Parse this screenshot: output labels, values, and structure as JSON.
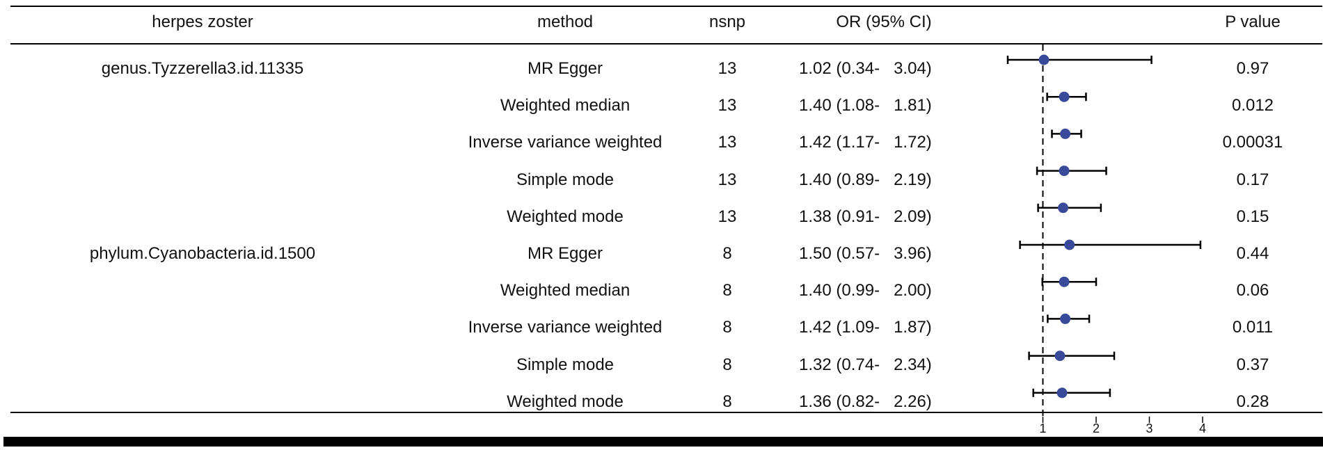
{
  "header": {
    "outcome": "herpes zoster",
    "method": "method",
    "nsnp": "nsnp",
    "or_ci": "OR (95% CI)",
    "p_value": "P value"
  },
  "groups": [
    {
      "label": "genus.Tyzzerella3.id.11335"
    },
    {
      "label": "phylum.Cyanobacteria.id.1500"
    }
  ],
  "rows": [
    {
      "method": "MR Egger",
      "nsnp": "13",
      "or_ci": "1.02 (0.34-   3.04)",
      "p": "0.97"
    },
    {
      "method": "Weighted median",
      "nsnp": "13",
      "or_ci": "1.40 (1.08-   1.81)",
      "p": "0.012"
    },
    {
      "method": "Inverse variance weighted",
      "nsnp": "13",
      "or_ci": "1.42 (1.17-   1.72)",
      "p": "0.00031"
    },
    {
      "method": "Simple mode",
      "nsnp": "13",
      "or_ci": "1.40 (0.89-   2.19)",
      "p": "0.17"
    },
    {
      "method": "Weighted mode",
      "nsnp": "13",
      "or_ci": "1.38 (0.91-   2.09)",
      "p": "0.15"
    },
    {
      "method": "MR Egger",
      "nsnp": "8",
      "or_ci": "1.50 (0.57-   3.96)",
      "p": "0.44"
    },
    {
      "method": "Weighted median",
      "nsnp": "8",
      "or_ci": "1.40 (0.99-   2.00)",
      "p": "0.06"
    },
    {
      "method": "Inverse variance weighted",
      "nsnp": "8",
      "or_ci": "1.42 (1.09-   1.87)",
      "p": "0.011"
    },
    {
      "method": "Simple mode",
      "nsnp": "8",
      "or_ci": "1.32 (0.74-   2.34)",
      "p": "0.37"
    },
    {
      "method": "Weighted mode",
      "nsnp": "8",
      "or_ci": "1.36 (0.82-   2.26)",
      "p": "0.28"
    }
  ],
  "chart_data": {
    "type": "scatter",
    "subtype": "forest",
    "title": "",
    "xlabel": "",
    "ylabel": "",
    "xlim": [
      0,
      4
    ],
    "x_ticks": [
      1,
      2,
      3,
      4
    ],
    "reference_line": 1,
    "grid": false,
    "point_color": "#3a4a9a",
    "series": [
      {
        "name": "genus.Tyzzerella3.id.11335",
        "points": [
          {
            "method": "MR Egger",
            "or": 1.02,
            "lower": 0.34,
            "upper": 3.04
          },
          {
            "method": "Weighted median",
            "or": 1.4,
            "lower": 1.08,
            "upper": 1.81
          },
          {
            "method": "Inverse variance weighted",
            "or": 1.42,
            "lower": 1.17,
            "upper": 1.72
          },
          {
            "method": "Simple mode",
            "or": 1.4,
            "lower": 0.89,
            "upper": 2.19
          },
          {
            "method": "Weighted mode",
            "or": 1.38,
            "lower": 0.91,
            "upper": 2.09
          }
        ]
      },
      {
        "name": "phylum.Cyanobacteria.id.1500",
        "points": [
          {
            "method": "MR Egger",
            "or": 1.5,
            "lower": 0.57,
            "upper": 3.96
          },
          {
            "method": "Weighted median",
            "or": 1.4,
            "lower": 0.99,
            "upper": 2.0
          },
          {
            "method": "Inverse variance weighted",
            "or": 1.42,
            "lower": 1.09,
            "upper": 1.87
          },
          {
            "method": "Simple mode",
            "or": 1.32,
            "lower": 0.74,
            "upper": 2.34
          },
          {
            "method": "Weighted mode",
            "or": 1.36,
            "lower": 0.82,
            "upper": 2.26
          }
        ]
      }
    ]
  }
}
